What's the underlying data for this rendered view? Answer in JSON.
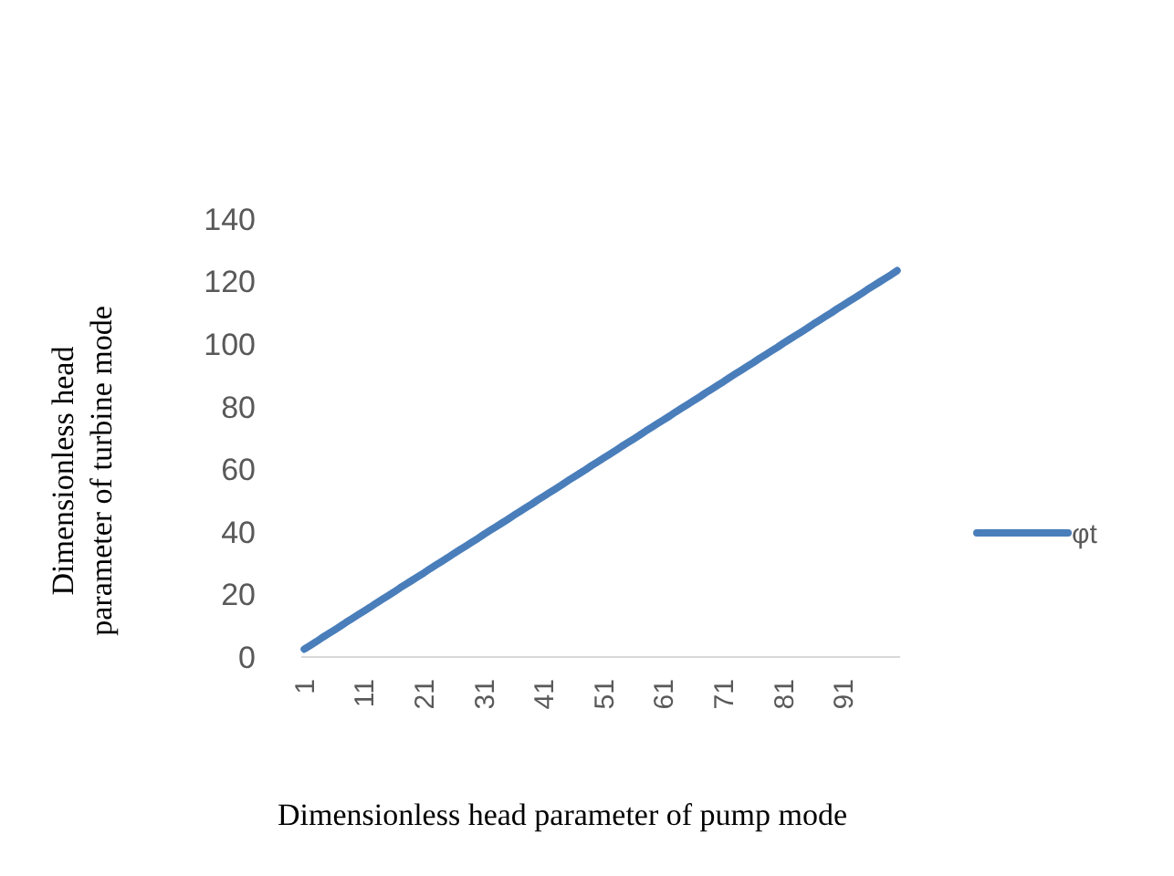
{
  "chart_data": {
    "type": "line",
    "xlabel": "Dimensionless head parameter of pump mode",
    "ylabel": "Dimensionless head parameter of turbine mode",
    "categories": [
      "1",
      null,
      null,
      null,
      null,
      null,
      null,
      null,
      null,
      null,
      "11",
      null,
      null,
      null,
      null,
      null,
      null,
      null,
      null,
      null,
      "21",
      null,
      null,
      null,
      null,
      null,
      null,
      null,
      null,
      null,
      "31",
      null,
      null,
      null,
      null,
      null,
      null,
      null,
      null,
      null,
      "41",
      null,
      null,
      null,
      null,
      null,
      null,
      null,
      null,
      null,
      "51",
      null,
      null,
      null,
      null,
      null,
      null,
      null,
      null,
      null,
      "61",
      null,
      null,
      null,
      null,
      null,
      null,
      null,
      null,
      null,
      "71",
      null,
      null,
      null,
      null,
      null,
      null,
      null,
      null,
      null,
      "81",
      null,
      null,
      null,
      null,
      null,
      null,
      null,
      null,
      null,
      "91",
      null,
      null,
      null,
      null,
      null,
      null,
      null,
      null,
      null
    ],
    "series": [
      {
        "name": "φt",
        "color": "#4a7ebb",
        "values": [
          2.5,
          3.7,
          4.9,
          6.2,
          7.4,
          8.6,
          9.8,
          11.1,
          12.3,
          13.5,
          14.7,
          15.9,
          17.2,
          18.4,
          19.6,
          20.8,
          22.1,
          23.3,
          24.5,
          25.7,
          26.9,
          28.2,
          29.4,
          30.6,
          31.8,
          33.1,
          34.3,
          35.5,
          36.7,
          37.9,
          39.2,
          40.4,
          41.6,
          42.8,
          44,
          45.3,
          46.5,
          47.7,
          48.9,
          50.2,
          51.4,
          52.6,
          53.8,
          55,
          56.3,
          57.5,
          58.7,
          59.9,
          61.2,
          62.4,
          63.6,
          64.8,
          66,
          67.3,
          68.5,
          69.7,
          70.9,
          72.2,
          73.4,
          74.6,
          75.8,
          77,
          78.3,
          79.5,
          80.7,
          81.9,
          83.1,
          84.4,
          85.6,
          86.8,
          88,
          89.3,
          90.5,
          91.7,
          92.9,
          94.1,
          95.4,
          96.6,
          97.8,
          99,
          100.3,
          101.5,
          102.7,
          103.9,
          105.1,
          106.4,
          107.6,
          108.8,
          110,
          111.3,
          112.5,
          113.7,
          114.9,
          116.1,
          117.4,
          118.6,
          119.8,
          121,
          122.2,
          123.5
        ]
      }
    ],
    "ylim": [
      0,
      140
    ],
    "yticks": [
      0,
      20,
      40,
      60,
      80,
      100,
      120,
      140
    ],
    "grid": false,
    "legend": "right",
    "line_style": "solid"
  }
}
